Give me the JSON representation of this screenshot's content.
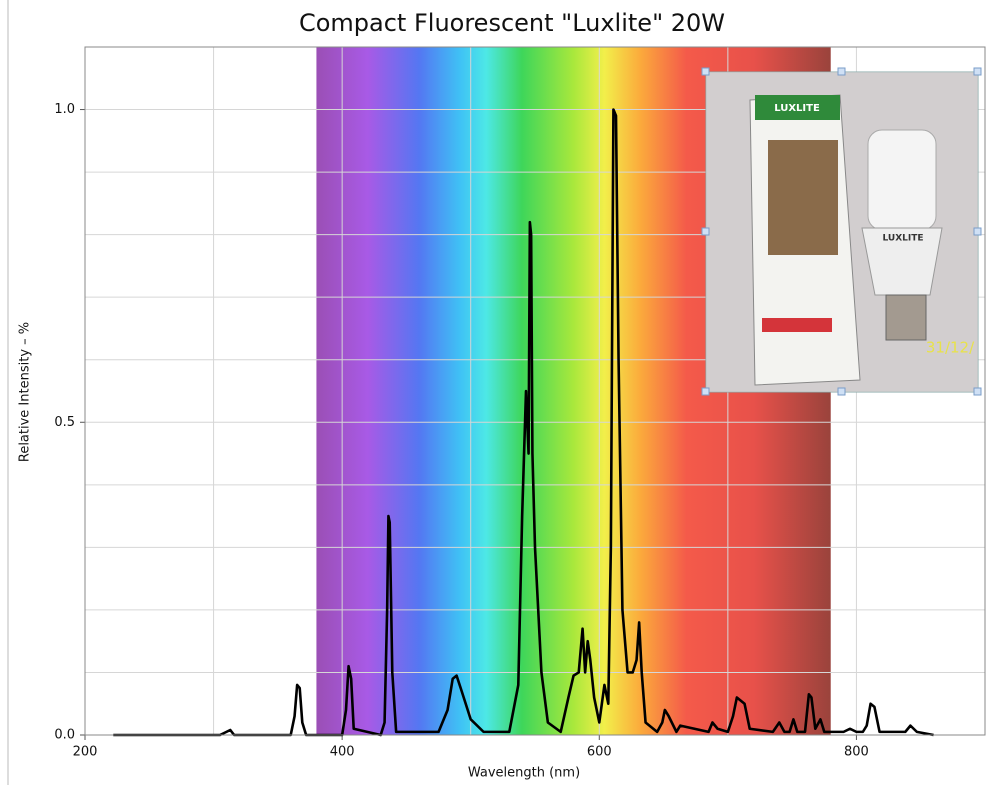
{
  "chart_data": {
    "type": "line",
    "title": "Compact Fluorescent \"Luxlite\" 20W",
    "x_label": "Wavelength (nm)",
    "y_label": "Relative Intensity – %",
    "xlim": [
      200,
      900
    ],
    "ylim": [
      0,
      1.1
    ],
    "xticks": [
      200,
      400,
      600,
      800
    ],
    "yticks": [
      {
        "value": 0,
        "label": "0.0"
      },
      {
        "value": 0.5,
        "label": "0.5"
      },
      {
        "value": 1,
        "label": "1.0"
      }
    ],
    "xgrid": [
      300,
      400,
      500,
      600,
      700,
      800
    ],
    "ygrid": [
      0.1,
      0.2,
      0.3,
      0.4,
      0.5,
      0.6,
      0.7,
      0.8,
      0.9,
      1.0
    ],
    "grid": true,
    "visible_band": [
      380,
      780
    ],
    "x": [
      222,
      305,
      310,
      313,
      316,
      360,
      363,
      365,
      367,
      369,
      372,
      400,
      403,
      405,
      407,
      409,
      430,
      433,
      435,
      436,
      437,
      439,
      442,
      475,
      482,
      486,
      489,
      493,
      500,
      510,
      530,
      537,
      540,
      543,
      545,
      546,
      547,
      548,
      550,
      555,
      560,
      570,
      576,
      580,
      584,
      587,
      589,
      591,
      593,
      596,
      600,
      604,
      607,
      609,
      611,
      613,
      615,
      618,
      622,
      626,
      629,
      631,
      633,
      636,
      645,
      649,
      651,
      654,
      660,
      663,
      685,
      688,
      692,
      700,
      704,
      707,
      710,
      713,
      717,
      735,
      740,
      744,
      748,
      751,
      754,
      760,
      763,
      765,
      768,
      772,
      775,
      790,
      795,
      800,
      805,
      808,
      811,
      814,
      818,
      838,
      842,
      847,
      860
    ],
    "series": [
      {
        "color": "#000000",
        "values": [
          0,
          0,
          0.005,
          0.008,
          0,
          0,
          0.03,
          0.08,
          0.075,
          0.02,
          0,
          0,
          0.04,
          0.11,
          0.09,
          0.01,
          0,
          0.02,
          0.2,
          0.35,
          0.34,
          0.1,
          0.005,
          0.005,
          0.04,
          0.09,
          0.095,
          0.07,
          0.025,
          0.005,
          0.005,
          0.08,
          0.35,
          0.55,
          0.45,
          0.82,
          0.8,
          0.45,
          0.3,
          0.1,
          0.02,
          0.005,
          0.06,
          0.095,
          0.1,
          0.17,
          0.1,
          0.15,
          0.12,
          0.06,
          0.02,
          0.08,
          0.05,
          0.3,
          1.0,
          0.99,
          0.6,
          0.2,
          0.1,
          0.1,
          0.12,
          0.18,
          0.1,
          0.02,
          0.005,
          0.02,
          0.04,
          0.03,
          0.005,
          0.015,
          0.005,
          0.02,
          0.01,
          0.005,
          0.03,
          0.06,
          0.055,
          0.05,
          0.01,
          0.005,
          0.02,
          0.005,
          0.005,
          0.025,
          0.005,
          0.005,
          0.065,
          0.06,
          0.01,
          0.025,
          0.005,
          0.005,
          0.01,
          0.005,
          0.005,
          0.015,
          0.05,
          0.045,
          0.005,
          0.005,
          0.015,
          0.005,
          0
        ]
      }
    ]
  },
  "photo": {
    "box_brand": "LUXLITE",
    "bulb_brand": "LUXLITE",
    "date_stamp": "31/12/"
  }
}
